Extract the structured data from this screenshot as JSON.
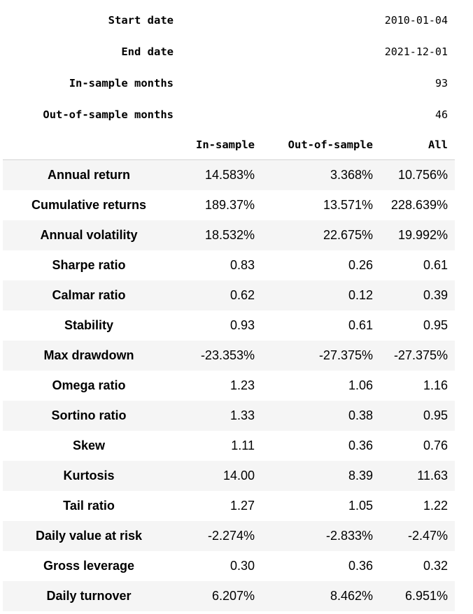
{
  "meta": [
    {
      "label": "Start date",
      "value": "2010-01-04"
    },
    {
      "label": "End date",
      "value": "2021-12-01"
    },
    {
      "label": "In-sample months",
      "value": "93"
    },
    {
      "label": "Out-of-sample months",
      "value": "46"
    }
  ],
  "columns": [
    "In-sample",
    "Out-of-sample",
    "All"
  ],
  "rows": [
    {
      "label": "Annual return",
      "values": [
        "14.583%",
        "3.368%",
        "10.756%"
      ]
    },
    {
      "label": "Cumulative returns",
      "values": [
        "189.37%",
        "13.571%",
        "228.639%"
      ]
    },
    {
      "label": "Annual volatility",
      "values": [
        "18.532%",
        "22.675%",
        "19.992%"
      ]
    },
    {
      "label": "Sharpe ratio",
      "values": [
        "0.83",
        "0.26",
        "0.61"
      ]
    },
    {
      "label": "Calmar ratio",
      "values": [
        "0.62",
        "0.12",
        "0.39"
      ]
    },
    {
      "label": "Stability",
      "values": [
        "0.93",
        "0.61",
        "0.95"
      ]
    },
    {
      "label": "Max drawdown",
      "values": [
        "-23.353%",
        "-27.375%",
        "-27.375%"
      ]
    },
    {
      "label": "Omega ratio",
      "values": [
        "1.23",
        "1.06",
        "1.16"
      ]
    },
    {
      "label": "Sortino ratio",
      "values": [
        "1.33",
        "0.38",
        "0.95"
      ]
    },
    {
      "label": "Skew",
      "values": [
        "1.11",
        "0.36",
        "0.76"
      ]
    },
    {
      "label": "Kurtosis",
      "values": [
        "14.00",
        "8.39",
        "11.63"
      ]
    },
    {
      "label": "Tail ratio",
      "values": [
        "1.27",
        "1.05",
        "1.22"
      ]
    },
    {
      "label": "Daily value at risk",
      "values": [
        "-2.274%",
        "-2.833%",
        "-2.47%"
      ]
    },
    {
      "label": "Gross leverage",
      "values": [
        "0.30",
        "0.36",
        "0.32"
      ]
    },
    {
      "label": "Daily turnover",
      "values": [
        "6.207%",
        "8.462%",
        "6.951%"
      ]
    }
  ]
}
